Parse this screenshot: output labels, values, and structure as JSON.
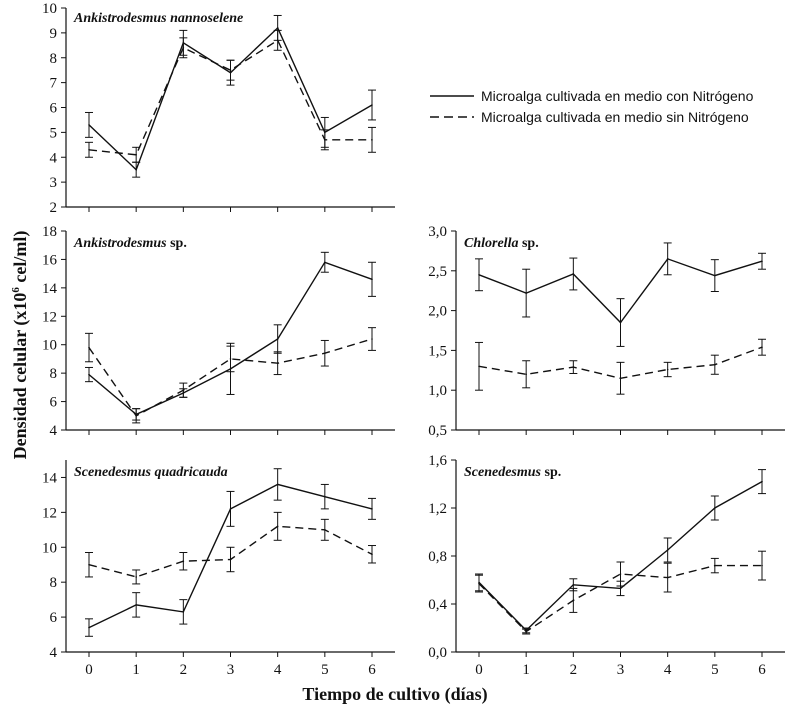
{
  "chart_data": {
    "type": "line",
    "ylabel": "Densidad celular (x10",
    "ylabel_sup": "6",
    "ylabel_tail": " cel/ml)",
    "xlabel": "Tiempo de cultivo (días)",
    "legend": [
      {
        "label": "Microalga cultivada en medio con Nitrógeno",
        "style": "solid"
      },
      {
        "label": "Microalga cultivada en medio sin Nitrógeno",
        "style": "dashed"
      }
    ],
    "panels": [
      {
        "title_italic": "Ankistrodesmus nannoselene",
        "title_rest": "",
        "x": [
          0,
          1,
          2,
          3,
          4,
          5,
          6
        ],
        "yticks": [
          "2",
          "3",
          "4",
          "5",
          "6",
          "7",
          "8",
          "9",
          "10"
        ],
        "ylim": [
          2,
          10
        ],
        "series": [
          {
            "name": "con Nitrógeno",
            "style": "solid",
            "values": [
              5.3,
              3.5,
              8.6,
              7.4,
              9.2,
              5.0,
              6.1
            ],
            "errors": [
              0.5,
              0.3,
              0.5,
              0.5,
              0.5,
              0.6,
              0.6
            ]
          },
          {
            "name": "sin Nitrógeno",
            "style": "dashed",
            "values": [
              4.3,
              4.1,
              8.4,
              7.5,
              8.7,
              4.7,
              4.7
            ],
            "errors": [
              0.3,
              0.3,
              0.4,
              0.4,
              0.4,
              0.4,
              0.5
            ]
          }
        ]
      },
      {
        "title_italic": "Ankistrodesmus",
        "title_rest": " sp.",
        "x": [
          0,
          1,
          2,
          3,
          4,
          5,
          6
        ],
        "yticks": [
          "4",
          "6",
          "8",
          "10",
          "12",
          "14",
          "16",
          "18"
        ],
        "ylim": [
          4,
          18
        ],
        "series": [
          {
            "name": "con Nitrógeno",
            "style": "solid",
            "values": [
              7.9,
              5.1,
              6.6,
              8.3,
              10.4,
              15.8,
              14.6
            ],
            "errors": [
              0.5,
              0.4,
              0.3,
              1.8,
              1.0,
              0.7,
              1.2
            ]
          },
          {
            "name": "sin Nitrógeno",
            "style": "dashed",
            "values": [
              9.8,
              5.0,
              6.8,
              9.0,
              8.7,
              9.4,
              10.4
            ],
            "errors": [
              1.0,
              0.5,
              0.5,
              0.9,
              0.8,
              0.9,
              0.8
            ]
          }
        ]
      },
      {
        "title_italic": "Chlorella",
        "title_rest": " sp.",
        "x": [
          0,
          1,
          2,
          3,
          4,
          5,
          6
        ],
        "yticks": [
          "0,5",
          "1,0",
          "1,5",
          "2,0",
          "2,5",
          "3,0"
        ],
        "ylim": [
          0.5,
          3.0
        ],
        "series": [
          {
            "name": "con Nitrógeno",
            "style": "solid",
            "values": [
              2.45,
              2.22,
              2.46,
              1.85,
              2.65,
              2.44,
              2.62
            ],
            "errors": [
              0.2,
              0.3,
              0.2,
              0.3,
              0.2,
              0.2,
              0.1
            ]
          },
          {
            "name": "sin Nitrógeno",
            "style": "dashed",
            "values": [
              1.3,
              1.2,
              1.29,
              1.15,
              1.26,
              1.32,
              1.54
            ],
            "errors": [
              0.3,
              0.17,
              0.08,
              0.2,
              0.09,
              0.12,
              0.1
            ]
          }
        ]
      },
      {
        "title_italic": "Scenedesmus quadricauda",
        "title_rest": "",
        "x": [
          0,
          1,
          2,
          3,
          4,
          5,
          6
        ],
        "yticks": [
          "4",
          "6",
          "8",
          "10",
          "12",
          "14"
        ],
        "ylim": [
          4,
          15
        ],
        "series": [
          {
            "name": "con Nitrógeno",
            "style": "solid",
            "values": [
              5.4,
              6.7,
              6.3,
              12.2,
              13.6,
              12.9,
              12.2
            ],
            "errors": [
              0.5,
              0.7,
              0.7,
              1.0,
              0.9,
              0.7,
              0.6
            ]
          },
          {
            "name": "sin Nitrógeno",
            "style": "dashed",
            "values": [
              9.0,
              8.3,
              9.2,
              9.3,
              11.2,
              11.0,
              9.6
            ],
            "errors": [
              0.7,
              0.4,
              0.5,
              0.7,
              0.8,
              0.6,
              0.5
            ]
          }
        ]
      },
      {
        "title_italic": "Scenedesmus",
        "title_rest": " sp.",
        "x": [
          0,
          1,
          2,
          3,
          4,
          5,
          6
        ],
        "yticks": [
          "0,0",
          "0,4",
          "0,8",
          "1,2",
          "1,6"
        ],
        "ylim": [
          0,
          1.6
        ],
        "series": [
          {
            "name": "con Nitrógeno",
            "style": "solid",
            "values": [
              0.58,
              0.18,
              0.56,
              0.53,
              0.85,
              1.2,
              1.42
            ],
            "errors": [
              0.07,
              0.02,
              0.05,
              0.06,
              0.1,
              0.1,
              0.1
            ]
          },
          {
            "name": "sin Nitrógeno",
            "style": "dashed",
            "values": [
              0.57,
              0.17,
              0.43,
              0.65,
              0.62,
              0.72,
              0.72
            ],
            "errors": [
              0.07,
              0.02,
              0.1,
              0.1,
              0.12,
              0.06,
              0.12
            ]
          }
        ]
      }
    ]
  }
}
